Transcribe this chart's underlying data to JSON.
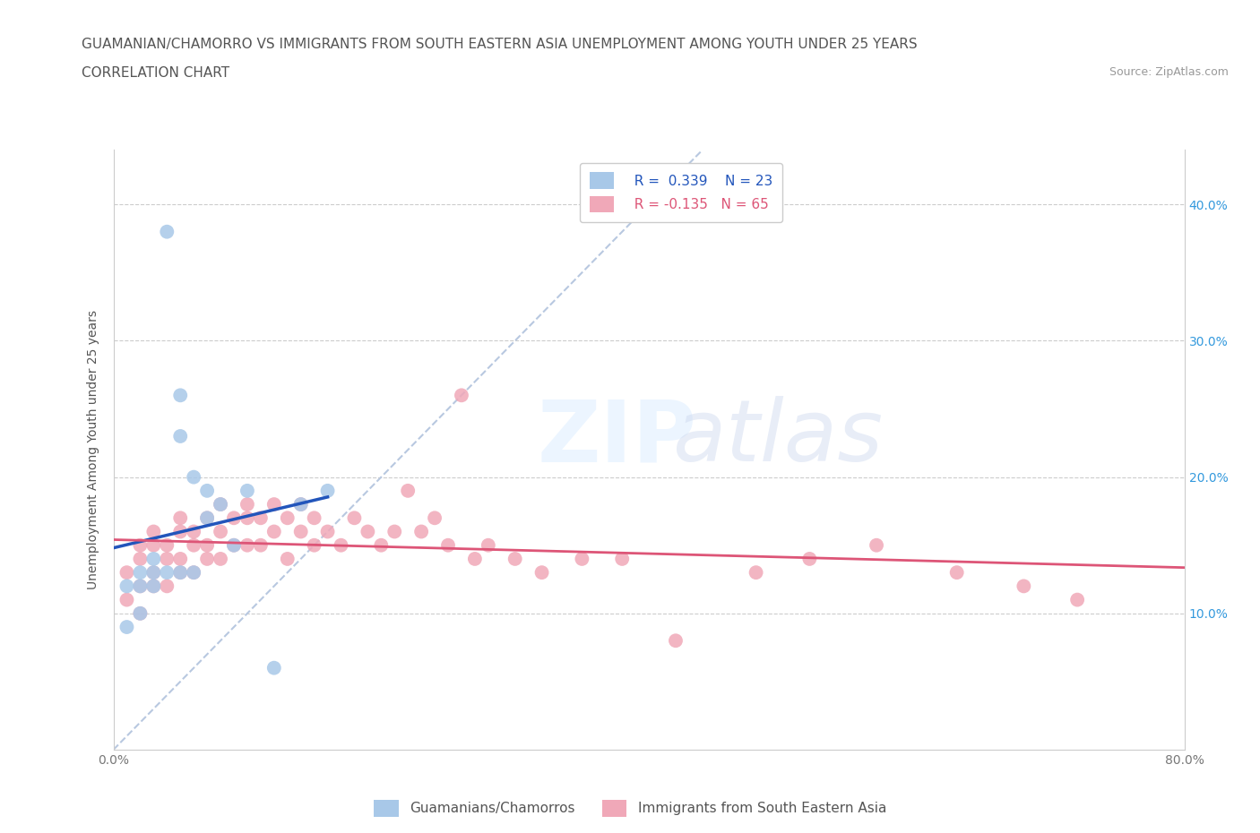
{
  "title_line1": "GUAMANIAN/CHAMORRO VS IMMIGRANTS FROM SOUTH EASTERN ASIA UNEMPLOYMENT AMONG YOUTH UNDER 25 YEARS",
  "title_line2": "CORRELATION CHART",
  "source_text": "Source: ZipAtlas.com",
  "ylabel": "Unemployment Among Youth under 25 years",
  "blue_R": 0.339,
  "blue_N": 23,
  "pink_R": -0.135,
  "pink_N": 65,
  "xlim": [
    0.0,
    0.8
  ],
  "ylim": [
    0.0,
    0.44
  ],
  "xticks": [
    0.0,
    0.1,
    0.2,
    0.3,
    0.4,
    0.5,
    0.6,
    0.7,
    0.8
  ],
  "xtick_labels": [
    "0.0%",
    "",
    "",
    "",
    "",
    "",
    "",
    "",
    "80.0%"
  ],
  "ytick_positions": [
    0.1,
    0.2,
    0.3,
    0.4
  ],
  "ytick_labels": [
    "10.0%",
    "20.0%",
    "30.0%",
    "40.0%"
  ],
  "blue_scatter_x": [
    0.01,
    0.01,
    0.02,
    0.02,
    0.02,
    0.03,
    0.03,
    0.03,
    0.04,
    0.04,
    0.05,
    0.05,
    0.05,
    0.06,
    0.06,
    0.07,
    0.07,
    0.08,
    0.09,
    0.1,
    0.12,
    0.14,
    0.16
  ],
  "blue_scatter_y": [
    0.12,
    0.09,
    0.13,
    0.12,
    0.1,
    0.14,
    0.13,
    0.12,
    0.38,
    0.13,
    0.26,
    0.23,
    0.13,
    0.2,
    0.13,
    0.19,
    0.17,
    0.18,
    0.15,
    0.19,
    0.06,
    0.18,
    0.19
  ],
  "pink_scatter_x": [
    0.01,
    0.01,
    0.02,
    0.02,
    0.02,
    0.02,
    0.03,
    0.03,
    0.03,
    0.03,
    0.04,
    0.04,
    0.04,
    0.05,
    0.05,
    0.05,
    0.05,
    0.06,
    0.06,
    0.06,
    0.07,
    0.07,
    0.07,
    0.08,
    0.08,
    0.08,
    0.09,
    0.09,
    0.1,
    0.1,
    0.1,
    0.11,
    0.11,
    0.12,
    0.12,
    0.13,
    0.13,
    0.14,
    0.14,
    0.15,
    0.15,
    0.16,
    0.17,
    0.18,
    0.19,
    0.2,
    0.21,
    0.22,
    0.23,
    0.24,
    0.25,
    0.26,
    0.27,
    0.28,
    0.3,
    0.32,
    0.35,
    0.38,
    0.42,
    0.48,
    0.52,
    0.57,
    0.63,
    0.68,
    0.72
  ],
  "pink_scatter_y": [
    0.13,
    0.11,
    0.15,
    0.14,
    0.12,
    0.1,
    0.16,
    0.15,
    0.13,
    0.12,
    0.15,
    0.14,
    0.12,
    0.17,
    0.16,
    0.14,
    0.13,
    0.16,
    0.15,
    0.13,
    0.17,
    0.15,
    0.14,
    0.18,
    0.16,
    0.14,
    0.17,
    0.15,
    0.18,
    0.17,
    0.15,
    0.17,
    0.15,
    0.18,
    0.16,
    0.17,
    0.14,
    0.18,
    0.16,
    0.17,
    0.15,
    0.16,
    0.15,
    0.17,
    0.16,
    0.15,
    0.16,
    0.19,
    0.16,
    0.17,
    0.15,
    0.26,
    0.14,
    0.15,
    0.14,
    0.13,
    0.14,
    0.14,
    0.08,
    0.13,
    0.14,
    0.15,
    0.13,
    0.12,
    0.11
  ],
  "blue_color": "#a8c8e8",
  "pink_color": "#f0a8b8",
  "blue_line_color": "#2255bb",
  "pink_line_color": "#dd5577",
  "diagonal_color": "#b8c8e0",
  "legend_blue_label": "Guamanians/Chamorros",
  "legend_pink_label": "Immigrants from South Eastern Asia",
  "title_fontsize": 11,
  "subtitle_fontsize": 11,
  "axis_label_fontsize": 10,
  "tick_fontsize": 10,
  "legend_fontsize": 11,
  "source_fontsize": 9
}
